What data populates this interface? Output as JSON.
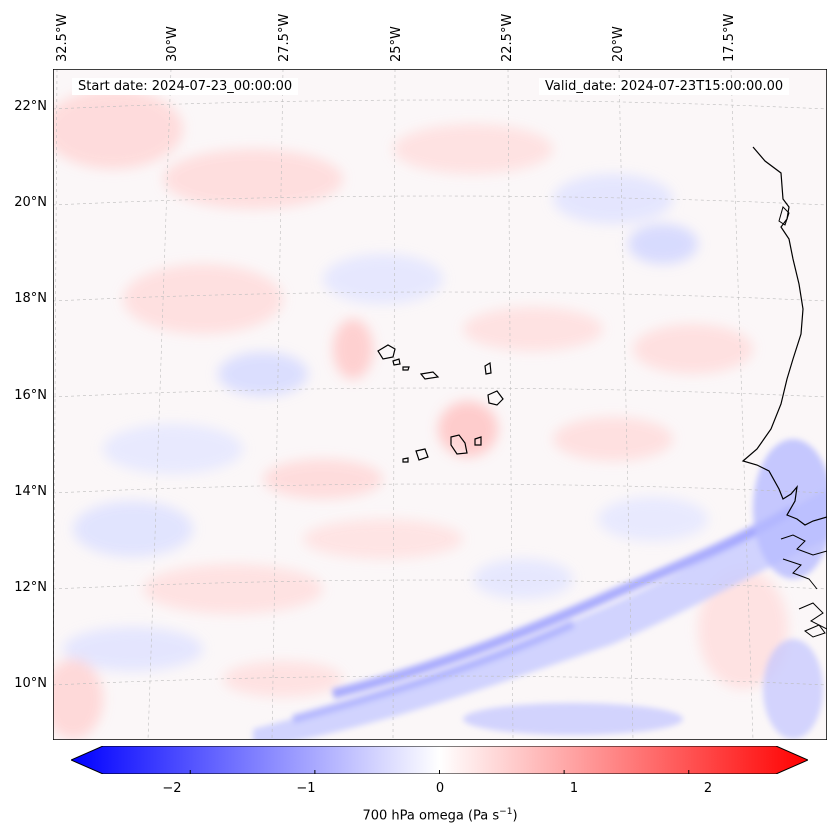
{
  "info": {
    "start": "Start date: 2024-07-23_00:00:00",
    "valid": "Valid_date: 2024-07-23T15:00:00.00"
  },
  "lon_labels": [
    "32.5°W",
    "30°W",
    "27.5°W",
    "25°W",
    "22.5°W",
    "20°W",
    "17.5°W"
  ],
  "lat_labels": [
    "22°N",
    "20°N",
    "18°N",
    "16°N",
    "14°N",
    "12°N",
    "10°N"
  ],
  "colorbar": {
    "ticks": [
      "−2",
      "−1",
      "0",
      "1",
      "2"
    ],
    "label_main": "700 hPa omega (Pa s",
    "label_exp": "−1",
    "label_end": ")",
    "vmin": -2.7,
    "vmax": 2.7,
    "colors": {
      "low": "#0000ff",
      "mid": "#ffffff",
      "high": "#ff0000"
    }
  }
}
